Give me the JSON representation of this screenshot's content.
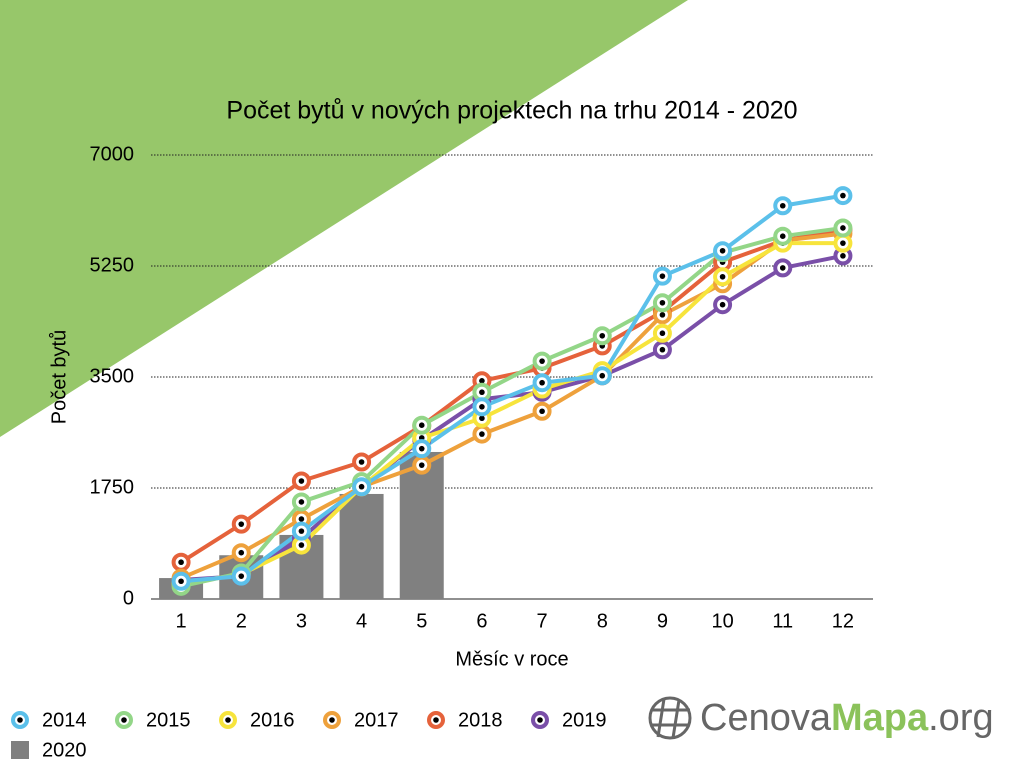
{
  "chart_data": {
    "type": "line",
    "title": "Počet bytů v nových projektech na trhu 2014 - 2020",
    "x_label": "Měsíc v roce",
    "y_label": "Počet bytů",
    "categories": [
      "1",
      "2",
      "3",
      "4",
      "5",
      "6",
      "7",
      "8",
      "9",
      "10",
      "11",
      "12"
    ],
    "ylim": [
      0,
      7000
    ],
    "yticks": [
      0,
      1750,
      3500,
      5250,
      7000
    ],
    "grid": true,
    "legend": "bottom",
    "series": [
      {
        "name": "2014",
        "color": "#5bc0ea",
        "values": [
          280,
          360,
          1070,
          1770,
          2370,
          3030,
          3410,
          3520,
          5090,
          5490,
          6200,
          6360
        ]
      },
      {
        "name": "2015",
        "color": "#93d688",
        "values": [
          200,
          410,
          1530,
          1850,
          2740,
          3260,
          3750,
          4150,
          4670,
          5460,
          5720,
          5850
        ]
      },
      {
        "name": "2016",
        "color": "#f7e43c",
        "values": [
          240,
          390,
          850,
          1770,
          2540,
          2850,
          3310,
          3600,
          4190,
          5080,
          5610,
          5610
        ]
      },
      {
        "name": "2017",
        "color": "#eea13c",
        "values": [
          330,
          730,
          1260,
          1770,
          2110,
          2600,
          2960,
          3520,
          4480,
          4970,
          5650,
          5760
        ]
      },
      {
        "name": "2018",
        "color": "#e5623b",
        "values": [
          580,
          1180,
          1860,
          2160,
          2730,
          3440,
          3640,
          3990,
          4530,
          5310,
          5650,
          5820
        ]
      },
      {
        "name": "2019",
        "color": "#7a4fa8",
        "values": [
          300,
          360,
          960,
          1770,
          2510,
          3150,
          3260,
          3520,
          3930,
          4640,
          5220,
          5410
        ]
      },
      {
        "name": "2020",
        "color": "#808080",
        "mark": "bar",
        "values": [
          330,
          690,
          1010,
          1656,
          2318,
          null,
          null,
          null,
          null,
          null,
          null,
          null
        ]
      }
    ]
  },
  "logo": {
    "part1": "Cenova",
    "part2": "Mapa",
    "part3": ".org"
  }
}
